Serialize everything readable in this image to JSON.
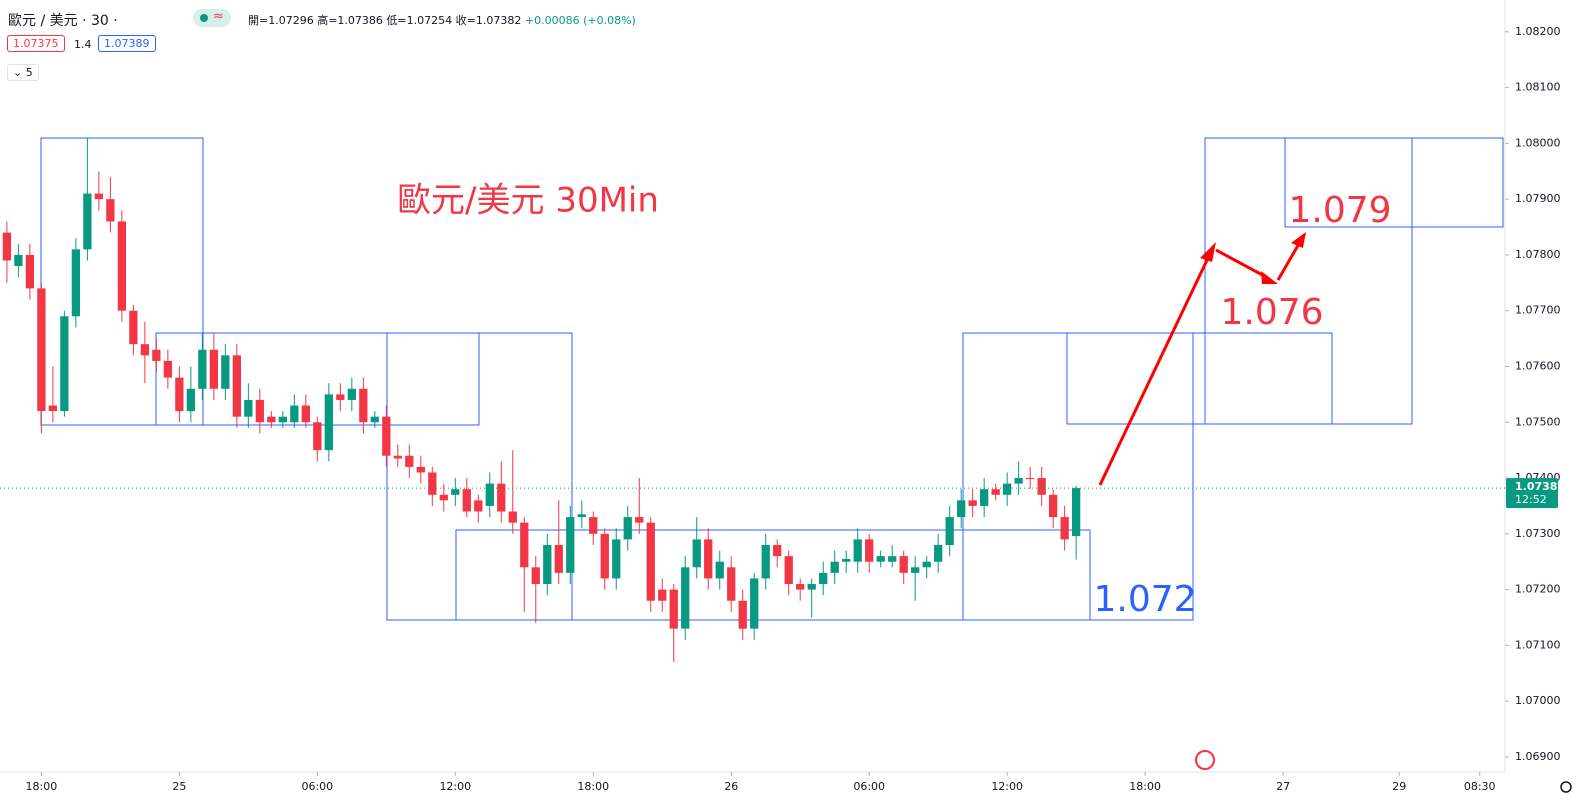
{
  "toolbar": {
    "symbol": "歐元 / 美元 · 30 ·",
    "ohlc": [
      "開=1.07296",
      "高=1.07386",
      "低=1.07254",
      "收=1.07382"
    ],
    "change": "+0.00086 (+0.08%)",
    "sell": "1.07375",
    "spread": "1.4",
    "buy": "1.07389",
    "indicators": "5"
  },
  "chart_data": {
    "type": "candlestick",
    "up_color": "#089981",
    "down_color": "#f23645",
    "annotations": [
      "歐元/美元 30Min",
      "1.079",
      "1.076",
      "1.072"
    ],
    "xlim": [
      -0.6,
      130.3
    ],
    "xticks": [
      {
        "value": 3,
        "label": "18:00"
      },
      {
        "value": 15,
        "label": "25"
      },
      {
        "value": 27,
        "label": "06:00"
      },
      {
        "value": 39,
        "label": "12:00"
      },
      {
        "value": 51,
        "label": "18:00"
      },
      {
        "value": 63,
        "label": "26"
      },
      {
        "value": 75,
        "label": "06:00"
      },
      {
        "value": 87,
        "label": "12:00"
      },
      {
        "value": 99,
        "label": "18:00"
      },
      {
        "value": 111,
        "label": "27"
      },
      {
        "value": 121.1,
        "label": "29"
      },
      {
        "value": 128.1,
        "label": "08:30"
      }
    ],
    "ylim": [
      1.06873,
      1.08257
    ],
    "yticks": [
      {
        "value": 1.082,
        "label": "1.08200"
      },
      {
        "value": 1.081,
        "label": "1.08100"
      },
      {
        "value": 1.08,
        "label": "1.08000"
      },
      {
        "value": 1.079,
        "label": "1.07900"
      },
      {
        "value": 1.078,
        "label": "1.07800"
      },
      {
        "value": 1.077,
        "label": "1.07700"
      },
      {
        "value": 1.076,
        "label": "1.07600"
      },
      {
        "value": 1.075,
        "label": "1.07500"
      },
      {
        "value": 1.074,
        "label": "1.07400"
      },
      {
        "value": 1.073,
        "label": "1.07300"
      },
      {
        "value": 1.072,
        "label": "1.07200"
      },
      {
        "value": 1.071,
        "label": "1.07100"
      },
      {
        "value": 1.07,
        "label": "1.07000"
      },
      {
        "value": 1.069,
        "label": "1.06900"
      }
    ],
    "last_price": {
      "value": 1.07382,
      "label": "1.07382",
      "countdown": "12:52"
    },
    "open": [
      1.0784,
      1.0778,
      1.078,
      1.0774,
      1.0753,
      1.0752,
      1.0769,
      1.0781,
      1.0791,
      1.079,
      1.0786,
      1.077,
      1.0764,
      1.0763,
      1.0761,
      1.0758,
      1.0752,
      1.0756,
      1.0763,
      1.0756,
      1.0762,
      1.0751,
      1.0754,
      1.0751,
      1.075,
      1.075,
      1.0753,
      1.075,
      1.0745,
      1.0755,
      1.0754,
      1.0756,
      1.075,
      1.0751,
      1.0744,
      1.0744,
      1.0742,
      1.0741,
      1.0737,
      1.0737,
      1.0738,
      1.0736,
      1.0735,
      1.0739,
      1.0734,
      1.0732,
      1.0724,
      1.0721,
      1.0728,
      1.0723,
      1.0733,
      1.0733,
      1.073,
      1.0722,
      1.0729,
      1.0733,
      1.0732,
      1.072,
      1.072,
      1.0713,
      1.0724,
      1.0729,
      1.0722,
      1.0724,
      1.0718,
      1.0713,
      1.0722,
      1.0728,
      1.0726,
      1.0721,
      1.072,
      1.0721,
      1.0723,
      1.0725,
      1.0725,
      1.0729,
      1.0725,
      1.0725,
      1.0726,
      1.0723,
      1.0724,
      1.0725,
      1.0728,
      1.0733,
      1.0736,
      1.0735,
      1.0738,
      1.0737,
      1.0739,
      1.074,
      1.074,
      1.0737,
      1.0733,
      1.07296
    ],
    "high": [
      1.0786,
      1.0782,
      1.0782,
      1.0775,
      1.076,
      1.077,
      1.0783,
      1.0801,
      1.0795,
      1.0794,
      1.0788,
      1.0771,
      1.0768,
      1.0765,
      1.0763,
      1.076,
      1.076,
      1.0766,
      1.0766,
      1.0764,
      1.0764,
      1.0757,
      1.0756,
      1.0752,
      1.0752,
      1.0755,
      1.0755,
      1.0751,
      1.0757,
      1.0757,
      1.0758,
      1.0758,
      1.0752,
      1.0753,
      1.0746,
      1.0746,
      1.0744,
      1.0742,
      1.0739,
      1.074,
      1.074,
      1.0737,
      1.0741,
      1.0743,
      1.0745,
      1.0733,
      1.0726,
      1.073,
      1.0736,
      1.0735,
      1.0736,
      1.0734,
      1.0731,
      1.0731,
      1.0735,
      1.074,
      1.0733,
      1.0722,
      1.0721,
      1.0726,
      1.0733,
      1.0731,
      1.0727,
      1.0726,
      1.072,
      1.0723,
      1.073,
      1.0729,
      1.0727,
      1.0722,
      1.0722,
      1.0725,
      1.0727,
      1.0727,
      1.0731,
      1.073,
      1.0727,
      1.0728,
      1.0727,
      1.0726,
      1.0726,
      1.073,
      1.0735,
      1.0738,
      1.0738,
      1.074,
      1.0739,
      1.0741,
      1.0743,
      1.0742,
      1.0742,
      1.0738,
      1.0735,
      1.07386
    ],
    "low": [
      1.0775,
      1.0776,
      1.0772,
      1.0748,
      1.075,
      1.0751,
      1.0767,
      1.0779,
      1.0788,
      1.0784,
      1.0768,
      1.0762,
      1.0757,
      1.0759,
      1.0756,
      1.075,
      1.075,
      1.0754,
      1.0754,
      1.0754,
      1.0749,
      1.0749,
      1.0748,
      1.0749,
      1.0749,
      1.0749,
      1.0749,
      1.0743,
      1.0743,
      1.0752,
      1.0752,
      1.0748,
      1.0749,
      1.0742,
      1.0742,
      1.074,
      1.0739,
      1.0735,
      1.0734,
      1.0735,
      1.0733,
      1.0732,
      1.0733,
      1.0732,
      1.073,
      1.0716,
      1.0714,
      1.0719,
      1.0721,
      1.0721,
      1.0731,
      1.0728,
      1.072,
      1.072,
      1.0727,
      1.073,
      1.0716,
      1.0716,
      1.0707,
      1.0711,
      1.0722,
      1.072,
      1.072,
      1.0716,
      1.0711,
      1.0711,
      1.072,
      1.0724,
      1.0719,
      1.0718,
      1.0715,
      1.0719,
      1.0721,
      1.0723,
      1.0723,
      1.0723,
      1.0724,
      1.0724,
      1.0721,
      1.0718,
      1.0722,
      1.0723,
      1.0726,
      1.0731,
      1.0733,
      1.0733,
      1.0736,
      1.0735,
      1.0737,
      1.0738,
      1.0735,
      1.0731,
      1.0727,
      1.07254
    ],
    "close": [
      1.0779,
      1.078,
      1.0774,
      1.0752,
      1.0752,
      1.0769,
      1.0781,
      1.0791,
      1.079,
      1.0786,
      1.077,
      1.0764,
      1.0762,
      1.0761,
      1.0758,
      1.0752,
      1.0756,
      1.0763,
      1.0756,
      1.0762,
      1.0751,
      1.0754,
      1.075,
      1.075,
      1.0751,
      1.0753,
      1.075,
      1.0745,
      1.0755,
      1.0754,
      1.0756,
      1.075,
      1.0751,
      1.0744,
      1.07435,
      1.0742,
      1.0741,
      1.0737,
      1.0736,
      1.0738,
      1.0734,
      1.0734,
      1.0739,
      1.0734,
      1.0732,
      1.0724,
      1.0721,
      1.0728,
      1.0723,
      1.0733,
      1.07335,
      1.073,
      1.0722,
      1.0729,
      1.0733,
      1.0732,
      1.0718,
      1.0718,
      1.0713,
      1.0724,
      1.0729,
      1.0722,
      1.0725,
      1.0718,
      1.0713,
      1.0722,
      1.0728,
      1.0726,
      1.0721,
      1.072,
      1.0721,
      1.0723,
      1.0725,
      1.07255,
      1.0729,
      1.0725,
      1.0726,
      1.0726,
      1.0723,
      1.0724,
      1.0725,
      1.0728,
      1.0733,
      1.0736,
      1.0735,
      1.0738,
      1.0737,
      1.0739,
      1.074,
      1.07398,
      1.0737,
      1.0733,
      1.0729,
      1.07382
    ]
  }
}
